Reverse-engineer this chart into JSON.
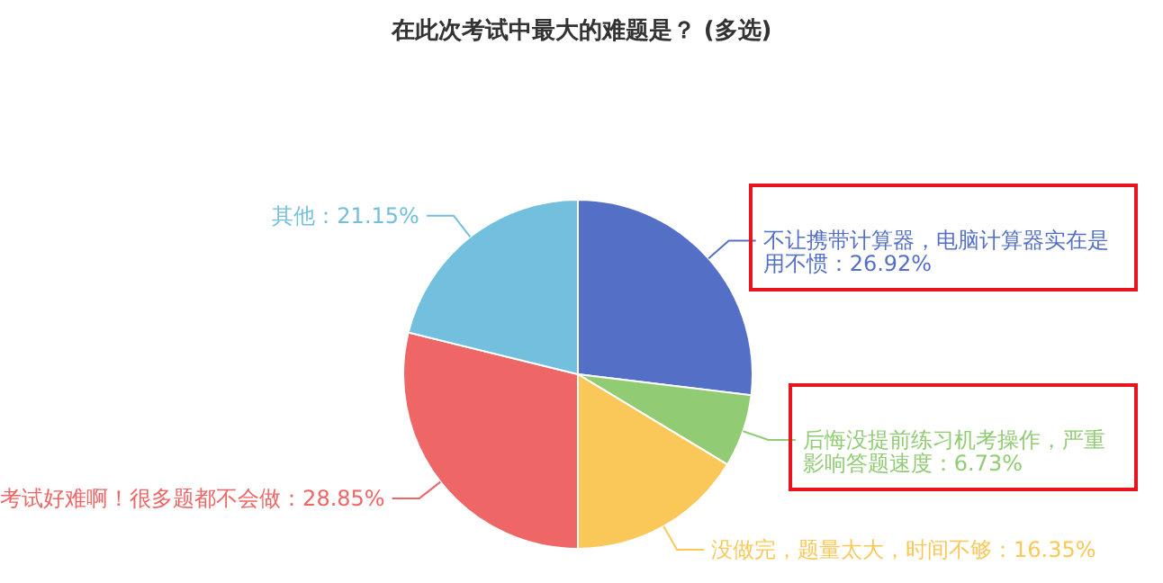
{
  "chart_data": {
    "type": "pie",
    "title": "在此次考试中最大的难题是？ (多选)",
    "categories": [
      "不让携带计算器，电脑计算器实在是用不惯",
      "后悔没提前练习机考操作，严重影响答题速度",
      "没做完，题量太大，时间不够",
      "考试好难啊！很多题都不会做",
      "其他"
    ],
    "values": [
      26.92,
      6.73,
      16.35,
      28.85,
      21.15
    ],
    "value_labels": [
      "26.92%",
      "6.73%",
      "16.35%",
      "28.85%",
      "21.15%"
    ],
    "colors": [
      "#5470c6",
      "#91cc75",
      "#fac858",
      "#ee6666",
      "#73c0de"
    ],
    "legend": false
  }
}
